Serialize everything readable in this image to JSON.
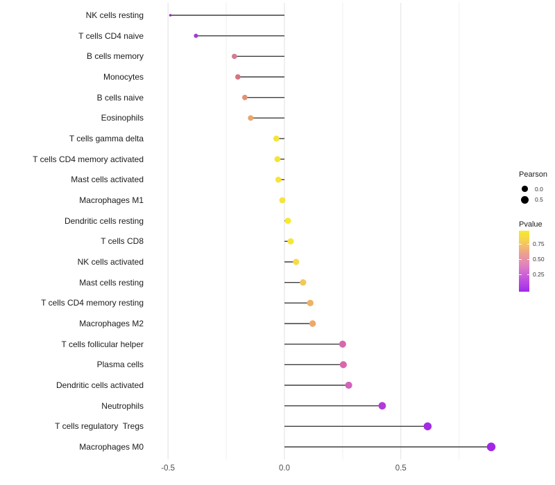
{
  "chart_data": {
    "type": "lollipop",
    "orientation": "horizontal",
    "title": "",
    "xlabel": "",
    "ylabel": "",
    "x_axis": {
      "tick_labels": [
        "-0.5",
        "0.0",
        "0.5"
      ],
      "tick_values": [
        -0.5,
        0.0,
        0.5
      ],
      "minor_gridlines": [
        -0.25,
        0.25,
        0.75
      ],
      "xlim": [
        -0.56,
        0.96
      ],
      "grid": "vertical light gray on white, no axis line, no tick marks"
    },
    "points": [
      {
        "label": "NK cells resting",
        "pearson": -0.49,
        "pvalue": 0.1,
        "color": "#8F2BB5"
      },
      {
        "label": "T cells CD4 naive",
        "pearson": -0.38,
        "pvalue": 0.13,
        "color": "#A43BD6"
      },
      {
        "label": "B cells memory",
        "pearson": -0.215,
        "pvalue": 0.45,
        "color": "#D57A92"
      },
      {
        "label": "Monocytes",
        "pearson": -0.2,
        "pvalue": 0.5,
        "color": "#D3747F"
      },
      {
        "label": "B cells naive",
        "pearson": -0.17,
        "pvalue": 0.57,
        "color": "#E29178"
      },
      {
        "label": "Eosinophils",
        "pearson": -0.145,
        "pvalue": 0.63,
        "color": "#EAA668"
      },
      {
        "label": "T cells gamma delta",
        "pearson": -0.035,
        "pvalue": 0.9,
        "color": "#F5E435"
      },
      {
        "label": "T cells CD4 memory activated",
        "pearson": -0.03,
        "pvalue": 0.92,
        "color": "#F6E52E"
      },
      {
        "label": "Mast cells activated",
        "pearson": -0.026,
        "pvalue": 0.9,
        "color": "#F5E43C"
      },
      {
        "label": "Macrophages M1",
        "pearson": -0.009,
        "pvalue": 0.91,
        "color": "#F6E33B"
      },
      {
        "label": "Dendritic cells resting",
        "pearson": 0.015,
        "pvalue": 0.95,
        "color": "#F8E92C"
      },
      {
        "label": "T cells CD8",
        "pearson": 0.027,
        "pvalue": 0.93,
        "color": "#F7E636"
      },
      {
        "label": "NK cells activated",
        "pearson": 0.05,
        "pvalue": 0.85,
        "color": "#F3DC48"
      },
      {
        "label": "Mast cells resting",
        "pearson": 0.08,
        "pvalue": 0.73,
        "color": "#F0C95C"
      },
      {
        "label": "T cells CD4 memory resting",
        "pearson": 0.111,
        "pvalue": 0.66,
        "color": "#EFB163"
      },
      {
        "label": "Macrophages M2",
        "pearson": 0.121,
        "pvalue": 0.64,
        "color": "#EDA96A"
      },
      {
        "label": "T cells follicular helper",
        "pearson": 0.25,
        "pvalue": 0.3,
        "color": "#D868AC"
      },
      {
        "label": "Plasma cells",
        "pearson": 0.253,
        "pvalue": 0.3,
        "color": "#D868AC"
      },
      {
        "label": "Dendritic cells activated",
        "pearson": 0.276,
        "pvalue": 0.26,
        "color": "#D462BE"
      },
      {
        "label": "Neutrophils",
        "pearson": 0.42,
        "pvalue": 0.12,
        "color": "#B13BD9"
      },
      {
        "label": "T cells regulatory  Tregs",
        "pearson": 0.615,
        "pvalue": 0.05,
        "color": "#A32BE4"
      },
      {
        "label": "Macrophages M0",
        "pearson": 0.888,
        "pvalue": 0.04,
        "color": "#A227E6"
      }
    ],
    "legend_size": {
      "title": "Pearson",
      "entries": [
        {
          "label": "0.0",
          "value": 0.0
        },
        {
          "label": "0.5",
          "value": 0.5
        }
      ],
      "dot_color": "#000000"
    },
    "legend_color": {
      "title": "Pvalue",
      "tick_labels": [
        "0.75",
        "0.50",
        "0.25"
      ],
      "tick_values": [
        0.75,
        0.5,
        0.25
      ],
      "bar_value_top": 0.97,
      "bar_value_bottom": -0.03,
      "gradient_top_to_bottom": [
        "#F8EA2D",
        "#F5CE55",
        "#EC9F92",
        "#E285BD",
        "#C85BDB",
        "#A02BEB"
      ],
      "gradient_stop_pct": [
        0,
        18,
        38,
        55,
        75,
        100
      ]
    },
    "style_colors": {
      "stem": "#3d3d3d",
      "grid_major": "#e2e2e2",
      "grid_minor": "#efefef",
      "background": "#ffffff"
    }
  }
}
